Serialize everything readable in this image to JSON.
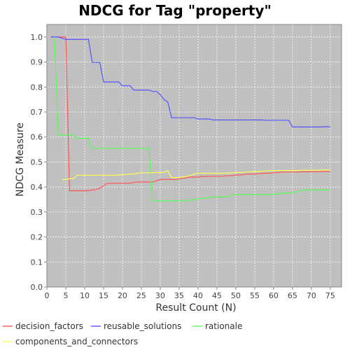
{
  "chart_data": {
    "type": "line",
    "title": "NDCG for Tag \"property\"",
    "xlabel": "Result Count (N)",
    "ylabel": "NDCG Measure",
    "xlim": [
      0,
      78
    ],
    "ylim": [
      0,
      1.05
    ],
    "xticks": [
      0,
      5,
      10,
      15,
      20,
      25,
      30,
      35,
      40,
      45,
      50,
      55,
      60,
      65,
      70,
      75
    ],
    "yticks": [
      0.0,
      0.1,
      0.2,
      0.3,
      0.4,
      0.5,
      0.6,
      0.7,
      0.8,
      0.9,
      1.0
    ],
    "xtick_labels": [
      "0",
      "5",
      "10",
      "15",
      "20",
      "25",
      "30",
      "35",
      "40",
      "45",
      "50",
      "55",
      "60",
      "65",
      "70",
      "75"
    ],
    "ytick_labels": [
      "0.0",
      "0.1",
      "0.2",
      "0.3",
      "0.4",
      "0.5",
      "0.6",
      "0.7",
      "0.8",
      "0.9",
      "1.0"
    ],
    "grid": true,
    "legend_position": "bottom",
    "colors": {
      "plot_background": "#c0c0c0",
      "grid": "#ffffff",
      "decision_factors": "#ff5555",
      "reusable_solutions": "#5555ff",
      "rationale": "#55ff55",
      "components_and_connectors": "#ffff55"
    },
    "series": [
      {
        "name": "decision_factors",
        "color_key": "decision_factors",
        "x": [
          1,
          2,
          3,
          4,
          5,
          6,
          7,
          8,
          9,
          10,
          11,
          12,
          13,
          14,
          15,
          16,
          17,
          18,
          19,
          20,
          21,
          22,
          23,
          24,
          25,
          26,
          27,
          28,
          29,
          30,
          31,
          32,
          33,
          34,
          35,
          36,
          37,
          38,
          39,
          40,
          41,
          42,
          43,
          44,
          45,
          46,
          47,
          48,
          49,
          50,
          51,
          52,
          53,
          54,
          55,
          56,
          57,
          58,
          59,
          60,
          61,
          62,
          63,
          64,
          65,
          66,
          67,
          68,
          69,
          70,
          71,
          72,
          73,
          74,
          75
        ],
        "values": [
          1.0,
          1.0,
          1.0,
          1.0,
          1.0,
          0.385,
          0.385,
          0.385,
          0.385,
          0.385,
          0.385,
          0.388,
          0.39,
          0.395,
          0.405,
          0.415,
          0.415,
          0.415,
          0.415,
          0.415,
          0.415,
          0.415,
          0.418,
          0.42,
          0.42,
          0.42,
          0.42,
          0.42,
          0.425,
          0.43,
          0.43,
          0.43,
          0.43,
          0.43,
          0.432,
          0.435,
          0.437,
          0.44,
          0.44,
          0.44,
          0.442,
          0.442,
          0.443,
          0.443,
          0.443,
          0.443,
          0.444,
          0.445,
          0.445,
          0.448,
          0.448,
          0.45,
          0.452,
          0.452,
          0.452,
          0.453,
          0.455,
          0.455,
          0.455,
          0.457,
          0.458,
          0.46,
          0.46,
          0.46,
          0.46,
          0.46,
          0.46,
          0.461,
          0.461,
          0.461,
          0.461,
          0.461,
          0.462,
          0.462,
          0.462
        ]
      },
      {
        "name": "reusable_solutions",
        "color_key": "reusable_solutions",
        "x": [
          1,
          2,
          3,
          4,
          5,
          6,
          7,
          8,
          9,
          10,
          11,
          12,
          13,
          14,
          15,
          16,
          17,
          18,
          19,
          20,
          21,
          22,
          23,
          24,
          25,
          26,
          27,
          28,
          29,
          30,
          31,
          32,
          33,
          34,
          35,
          36,
          37,
          38,
          39,
          40,
          41,
          42,
          43,
          44,
          45,
          46,
          47,
          48,
          49,
          50,
          51,
          52,
          53,
          54,
          55,
          56,
          57,
          58,
          59,
          60,
          61,
          62,
          63,
          64,
          65,
          66,
          67,
          68,
          69,
          70,
          71,
          72,
          73,
          74,
          75
        ],
        "values": [
          1.0,
          1.0,
          1.0,
          0.995,
          0.99,
          0.99,
          0.99,
          0.99,
          0.99,
          0.99,
          0.99,
          0.898,
          0.898,
          0.898,
          0.82,
          0.82,
          0.82,
          0.82,
          0.82,
          0.805,
          0.805,
          0.805,
          0.788,
          0.788,
          0.788,
          0.788,
          0.788,
          0.782,
          0.782,
          0.77,
          0.75,
          0.74,
          0.677,
          0.677,
          0.677,
          0.677,
          0.677,
          0.677,
          0.677,
          0.672,
          0.672,
          0.672,
          0.672,
          0.668,
          0.668,
          0.668,
          0.668,
          0.668,
          0.668,
          0.668,
          0.668,
          0.668,
          0.668,
          0.668,
          0.668,
          0.668,
          0.668,
          0.667,
          0.667,
          0.667,
          0.667,
          0.667,
          0.667,
          0.667,
          0.64,
          0.64,
          0.64,
          0.64,
          0.64,
          0.64,
          0.64,
          0.64,
          0.641,
          0.641,
          0.641
        ]
      },
      {
        "name": "rationale",
        "color_key": "rationale",
        "x": [
          2,
          3,
          4,
          5,
          6,
          7,
          8,
          9,
          10,
          11,
          12,
          13,
          14,
          15,
          16,
          17,
          18,
          19,
          20,
          21,
          22,
          23,
          24,
          25,
          26,
          27,
          28,
          29,
          30,
          31,
          32,
          33,
          34,
          35,
          36,
          37,
          38,
          39,
          40,
          41,
          42,
          43,
          44,
          45,
          46,
          47,
          48,
          49,
          50,
          51,
          52,
          53,
          54,
          55,
          56,
          57,
          58,
          59,
          60,
          61,
          62,
          63,
          64,
          65,
          66,
          67,
          68,
          69,
          70,
          71,
          72,
          73,
          74,
          75
        ],
        "values": [
          1.0,
          0.608,
          0.608,
          0.608,
          0.608,
          0.608,
          0.595,
          0.595,
          0.595,
          0.595,
          0.555,
          0.555,
          0.555,
          0.555,
          0.555,
          0.555,
          0.555,
          0.555,
          0.555,
          0.555,
          0.555,
          0.555,
          0.555,
          0.555,
          0.555,
          0.555,
          0.345,
          0.345,
          0.345,
          0.345,
          0.345,
          0.345,
          0.345,
          0.345,
          0.345,
          0.345,
          0.348,
          0.35,
          0.352,
          0.355,
          0.355,
          0.358,
          0.36,
          0.36,
          0.36,
          0.36,
          0.362,
          0.365,
          0.37,
          0.37,
          0.37,
          0.37,
          0.37,
          0.37,
          0.37,
          0.37,
          0.37,
          0.37,
          0.37,
          0.372,
          0.375,
          0.375,
          0.375,
          0.378,
          0.38,
          0.385,
          0.388,
          0.388,
          0.388,
          0.388,
          0.388,
          0.388,
          0.388,
          0.388
        ]
      },
      {
        "name": "components_and_connectors",
        "color_key": "components_and_connectors",
        "x": [
          4,
          5,
          6,
          7,
          8,
          9,
          10,
          11,
          12,
          13,
          14,
          15,
          16,
          17,
          18,
          19,
          20,
          21,
          22,
          23,
          24,
          25,
          26,
          27,
          28,
          29,
          30,
          31,
          32,
          33,
          34,
          35,
          36,
          37,
          38,
          39,
          40,
          41,
          42,
          43,
          44,
          45,
          46,
          47,
          48,
          49,
          50,
          51,
          52,
          53,
          54,
          55,
          56,
          57,
          58,
          59,
          60,
          61,
          62,
          63,
          64,
          65,
          66,
          67,
          68,
          69,
          70,
          71,
          72,
          73,
          74,
          75
        ],
        "values": [
          0.43,
          0.43,
          0.433,
          0.433,
          0.447,
          0.447,
          0.447,
          0.447,
          0.447,
          0.447,
          0.447,
          0.447,
          0.447,
          0.447,
          0.447,
          0.448,
          0.449,
          0.45,
          0.452,
          0.452,
          0.455,
          0.457,
          0.457,
          0.457,
          0.457,
          0.458,
          0.458,
          0.458,
          0.465,
          0.438,
          0.438,
          0.438,
          0.44,
          0.442,
          0.447,
          0.452,
          0.455,
          0.455,
          0.455,
          0.455,
          0.455,
          0.455,
          0.455,
          0.455,
          0.456,
          0.457,
          0.458,
          0.458,
          0.459,
          0.46,
          0.461,
          0.462,
          0.462,
          0.463,
          0.464,
          0.465,
          0.466,
          0.466,
          0.466,
          0.466,
          0.466,
          0.466,
          0.466,
          0.467,
          0.467,
          0.467,
          0.467,
          0.467,
          0.468,
          0.468,
          0.468,
          0.468
        ]
      }
    ]
  }
}
